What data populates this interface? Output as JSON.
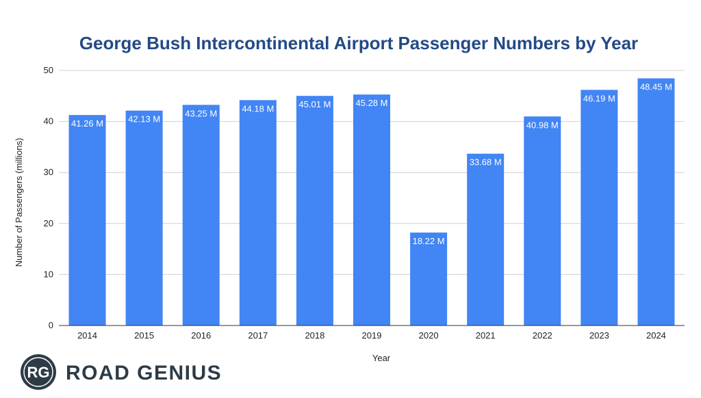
{
  "chart_data": {
    "type": "bar",
    "title": "George Bush Intercontinental Airport Passenger Numbers by Year",
    "xlabel": "Year",
    "ylabel": "Number of Passengers (millions)",
    "ylim": [
      0,
      50
    ],
    "yticks": [
      0,
      10,
      20,
      30,
      40,
      50
    ],
    "grid": true,
    "categories": [
      "2014",
      "2015",
      "2016",
      "2017",
      "2018",
      "2019",
      "2020",
      "2021",
      "2022",
      "2023",
      "2024"
    ],
    "values": [
      41.26,
      42.13,
      43.25,
      44.18,
      45.01,
      45.28,
      18.22,
      33.68,
      40.98,
      46.19,
      48.45
    ],
    "data_labels": [
      "41.26 M",
      "42.13 M",
      "43.25 M",
      "44.18 M",
      "45.01 M",
      "45.28 M",
      "18.22 M",
      "33.68 M",
      "40.98 M",
      "46.19 M",
      "48.45 M"
    ],
    "bar_color": "#4285f4",
    "title_color": "#234a85"
  },
  "branding": {
    "logo_mark": "RG",
    "logo_name": "ROAD GENIUS",
    "logo_color": "#2e3b47"
  }
}
